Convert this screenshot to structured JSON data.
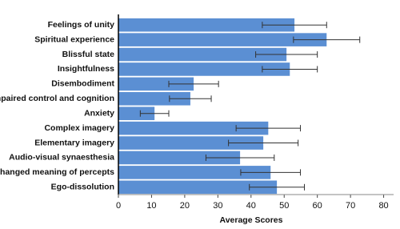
{
  "chart_data": {
    "type": "hbar",
    "xlabel": "Average Scores",
    "categories": [
      "Feelings of unity",
      "Spiritual experience",
      "Blissful state",
      "Insightfulness",
      "Disembodiment",
      "Impaired control and cognition",
      "Anxiety",
      "Complex imagery",
      "Elementary imagery",
      "Audio-visual synaesthesia",
      "Changed meaning of percepts",
      "Ego-dissolution"
    ],
    "values": [
      53.1,
      62.8,
      50.7,
      51.7,
      22.7,
      21.7,
      10.9,
      45.2,
      43.7,
      36.7,
      45.9,
      47.8
    ],
    "errors": [
      9.7,
      10,
      9.3,
      8.3,
      7.5,
      6.3,
      4.3,
      9.7,
      10.5,
      10.3,
      9,
      8.3
    ],
    "color": "#5b8fd3",
    "xlim": [
      0,
      83
    ],
    "xticks": [
      0,
      10,
      20,
      30,
      40,
      50,
      60,
      70,
      80
    ]
  }
}
